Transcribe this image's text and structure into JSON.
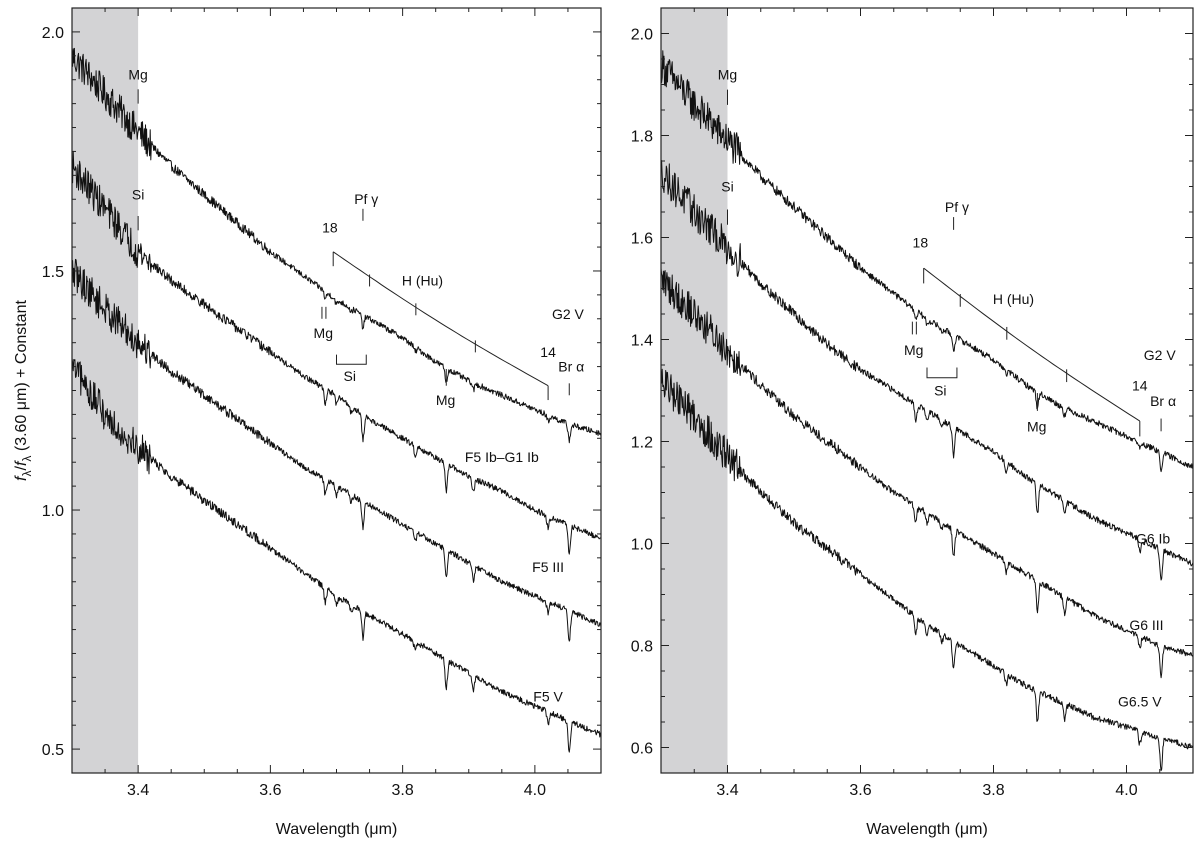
{
  "chart_data": [
    {
      "type": "line",
      "panel": "left",
      "xlabel": "Wavelength (μm)",
      "ylabel": "f_λ/f_λ (3.60 μm) + Constant",
      "ylabel_parts": {
        "f": "f",
        "sub_lambda": "λ",
        "slash": "/",
        "rest": " (3.60 μm) + Constant"
      },
      "xlim": [
        3.3,
        4.1
      ],
      "ylim": [
        0.45,
        2.05
      ],
      "xticks": [
        3.4,
        3.6,
        3.8,
        4.0
      ],
      "xtick_labels": [
        "3.4",
        "3.6",
        "3.8",
        "4.0"
      ],
      "yticks": [
        0.5,
        1.0,
        1.5,
        2.0
      ],
      "ytick_labels": [
        "0.5",
        "1.0",
        "1.5",
        "2.0"
      ],
      "shaded_region": [
        3.3,
        3.4
      ],
      "grid": false,
      "series": [
        {
          "name": "G2 V",
          "x": [
            3.3,
            3.35,
            3.4,
            3.45,
            3.5,
            3.55,
            3.6,
            3.65,
            3.7,
            3.75,
            3.8,
            3.85,
            3.9,
            3.95,
            4.0,
            4.05,
            4.1
          ],
          "y": [
            1.95,
            1.87,
            1.79,
            1.72,
            1.66,
            1.6,
            1.54,
            1.49,
            1.44,
            1.4,
            1.36,
            1.31,
            1.27,
            1.24,
            1.21,
            1.18,
            1.16
          ]
        },
        {
          "name": "F5 Ib–G1 Ib",
          "x": [
            3.3,
            3.35,
            3.4,
            3.45,
            3.5,
            3.55,
            3.6,
            3.65,
            3.7,
            3.75,
            3.8,
            3.85,
            3.9,
            3.95,
            4.0,
            4.05,
            4.1
          ],
          "y": [
            1.72,
            1.63,
            1.54,
            1.48,
            1.43,
            1.38,
            1.33,
            1.28,
            1.24,
            1.19,
            1.15,
            1.11,
            1.07,
            1.04,
            1.0,
            0.97,
            0.94
          ]
        },
        {
          "name": "F5 III",
          "x": [
            3.3,
            3.35,
            3.4,
            3.45,
            3.5,
            3.55,
            3.6,
            3.65,
            3.7,
            3.75,
            3.8,
            3.85,
            3.9,
            3.95,
            4.0,
            4.05,
            4.1
          ],
          "y": [
            1.5,
            1.42,
            1.35,
            1.29,
            1.24,
            1.19,
            1.14,
            1.09,
            1.05,
            1.01,
            0.97,
            0.93,
            0.89,
            0.85,
            0.82,
            0.79,
            0.76
          ]
        },
        {
          "name": "F5 V",
          "x": [
            3.3,
            3.35,
            3.4,
            3.45,
            3.5,
            3.55,
            3.6,
            3.65,
            3.7,
            3.75,
            3.8,
            3.85,
            3.9,
            3.95,
            4.0,
            4.05,
            4.1
          ],
          "y": [
            1.3,
            1.2,
            1.13,
            1.07,
            1.02,
            0.97,
            0.92,
            0.87,
            0.82,
            0.78,
            0.74,
            0.7,
            0.66,
            0.62,
            0.59,
            0.56,
            0.53
          ]
        }
      ],
      "series_labels": [
        {
          "text": "G2  V",
          "x": 4.05,
          "y": 1.4
        },
        {
          "text": "F5 Ib–G1 Ib",
          "x": 3.95,
          "y": 1.1
        },
        {
          "text": "F5 III",
          "x": 4.02,
          "y": 0.87
        },
        {
          "text": "F5  V",
          "x": 4.02,
          "y": 0.6
        }
      ],
      "annotations": [
        {
          "id": "mg-top",
          "text": "Mg",
          "x": 3.4,
          "y": 1.9
        },
        {
          "id": "si-top",
          "text": "Si",
          "x": 3.4,
          "y": 1.65
        },
        {
          "id": "pf-gamma",
          "text": "Pf  γ",
          "x": 3.745,
          "y": 1.64
        },
        {
          "id": "hu-18",
          "text": "18",
          "x": 3.69,
          "y": 1.58
        },
        {
          "id": "hu-series",
          "text": "H (Hu)",
          "x": 3.83,
          "y": 1.47
        },
        {
          "id": "mg-mid",
          "text": "Mg",
          "x": 3.68,
          "y": 1.36
        },
        {
          "id": "si-mid",
          "text": "Si",
          "x": 3.72,
          "y": 1.27
        },
        {
          "id": "mg-low",
          "text": "Mg",
          "x": 3.865,
          "y": 1.22
        },
        {
          "id": "hu-14",
          "text": "14",
          "x": 4.02,
          "y": 1.32
        },
        {
          "id": "br-alpha",
          "text": "Br  α",
          "x": 4.055,
          "y": 1.29
        }
      ]
    },
    {
      "type": "line",
      "panel": "right",
      "xlabel": "Wavelength (μm)",
      "xlim": [
        3.3,
        4.1
      ],
      "ylim": [
        0.55,
        2.05
      ],
      "xticks": [
        3.4,
        3.6,
        3.8,
        4.0
      ],
      "xtick_labels": [
        "3.4",
        "3.6",
        "3.8",
        "4.0"
      ],
      "yticks": [
        0.6,
        0.8,
        1.0,
        1.2,
        1.4,
        1.6,
        1.8,
        2.0
      ],
      "ytick_labels": [
        "0.6",
        "0.8",
        "1.0",
        "1.2",
        "1.4",
        "1.6",
        "1.8",
        "2.0"
      ],
      "shaded_region": [
        3.3,
        3.4
      ],
      "grid": false,
      "series": [
        {
          "name": "G2  V",
          "x": [
            3.3,
            3.35,
            3.4,
            3.45,
            3.5,
            3.55,
            3.6,
            3.65,
            3.7,
            3.75,
            3.8,
            3.85,
            3.9,
            3.95,
            4.0,
            4.05,
            4.1
          ],
          "y": [
            1.94,
            1.86,
            1.79,
            1.72,
            1.66,
            1.6,
            1.54,
            1.49,
            1.44,
            1.4,
            1.36,
            1.31,
            1.27,
            1.24,
            1.21,
            1.18,
            1.15
          ]
        },
        {
          "name": "G6 Ib",
          "x": [
            3.3,
            3.35,
            3.4,
            3.45,
            3.5,
            3.55,
            3.6,
            3.65,
            3.7,
            3.75,
            3.8,
            3.85,
            3.9,
            3.95,
            4.0,
            4.05,
            4.1
          ],
          "y": [
            1.73,
            1.65,
            1.58,
            1.51,
            1.45,
            1.39,
            1.34,
            1.3,
            1.26,
            1.22,
            1.18,
            1.13,
            1.09,
            1.05,
            1.02,
            0.99,
            0.96
          ]
        },
        {
          "name": "G6 III",
          "x": [
            3.3,
            3.35,
            3.4,
            3.45,
            3.5,
            3.55,
            3.6,
            3.65,
            3.7,
            3.75,
            3.8,
            3.85,
            3.9,
            3.95,
            4.0,
            4.05,
            4.1
          ],
          "y": [
            1.52,
            1.45,
            1.38,
            1.31,
            1.25,
            1.2,
            1.15,
            1.1,
            1.06,
            1.02,
            0.98,
            0.94,
            0.9,
            0.86,
            0.83,
            0.8,
            0.78
          ]
        },
        {
          "name": "G6.5  V",
          "x": [
            3.3,
            3.35,
            3.4,
            3.45,
            3.5,
            3.55,
            3.6,
            3.65,
            3.7,
            3.75,
            3.8,
            3.85,
            3.9,
            3.95,
            4.0,
            4.05,
            4.1
          ],
          "y": [
            1.32,
            1.25,
            1.17,
            1.1,
            1.04,
            0.99,
            0.94,
            0.89,
            0.84,
            0.8,
            0.76,
            0.72,
            0.69,
            0.66,
            0.64,
            0.62,
            0.6
          ]
        }
      ],
      "series_labels": [
        {
          "text": "G2  V",
          "x": 4.05,
          "y": 1.36
        },
        {
          "text": "G6 Ib",
          "x": 4.04,
          "y": 1.0
        },
        {
          "text": "G6 III",
          "x": 4.03,
          "y": 0.83
        },
        {
          "text": "G6.5  V",
          "x": 4.02,
          "y": 0.68
        }
      ],
      "annotations": [
        {
          "id": "mg-top",
          "text": "Mg",
          "x": 3.4,
          "y": 1.91
        },
        {
          "id": "si-top",
          "text": "Si",
          "x": 3.4,
          "y": 1.69
        },
        {
          "id": "pf-gamma",
          "text": "Pf  γ",
          "x": 3.745,
          "y": 1.65
        },
        {
          "id": "hu-18",
          "text": "18",
          "x": 3.69,
          "y": 1.58
        },
        {
          "id": "hu-series",
          "text": "H (Hu)",
          "x": 3.83,
          "y": 1.47
        },
        {
          "id": "mg-mid",
          "text": "Mg",
          "x": 3.68,
          "y": 1.37
        },
        {
          "id": "si-mid",
          "text": "Si",
          "x": 3.72,
          "y": 1.29
        },
        {
          "id": "mg-low",
          "text": "Mg",
          "x": 3.865,
          "y": 1.22
        },
        {
          "id": "hu-14",
          "text": "14",
          "x": 4.02,
          "y": 1.3
        },
        {
          "id": "br-alpha",
          "text": "Br  α",
          "x": 4.055,
          "y": 1.27
        }
      ]
    }
  ]
}
